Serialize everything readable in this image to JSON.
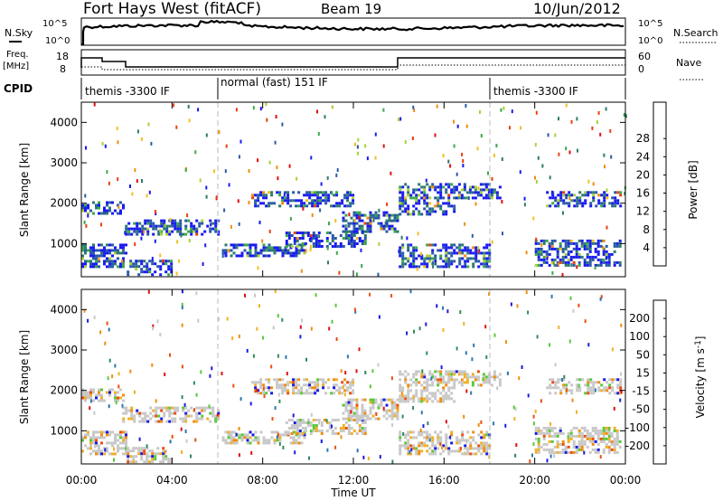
{
  "header": {
    "station": "Fort Hays West (fitACF)",
    "beam": "Beam 19",
    "date": "10/Jun/2012"
  },
  "noise_panel": {
    "left_label": "N.Sky",
    "right_label": "N.Search",
    "left_ticks": [
      "10^5",
      "10^0"
    ],
    "right_ticks": [
      "10^5",
      "10^0"
    ]
  },
  "freq_panel": {
    "left_label": "Freq.",
    "left_unit": "[MHz]",
    "left_ticks": [
      "18",
      "8"
    ],
    "right_label": "Nave",
    "right_ticks": [
      "60",
      "0"
    ]
  },
  "cpid": {
    "label": "CPID",
    "segments": [
      {
        "start_hour": 0,
        "text": "themis -3300 IF"
      },
      {
        "start_hour": 6,
        "text": "normal (fast) 151 IF"
      },
      {
        "start_hour": 18,
        "text": "themis -3300 IF"
      }
    ]
  },
  "chart_data": [
    {
      "type": "heatmap",
      "name": "power",
      "ylabel": "Slant Range [km]",
      "xlabel": "Time UT",
      "xlim": [
        0,
        24
      ],
      "ylim": [
        180,
        4500
      ],
      "x_ticks": [
        "00:00",
        "04:00",
        "08:00",
        "12:00",
        "16:00",
        "20:00",
        "00:00"
      ],
      "y_ticks": [
        1000,
        2000,
        3000,
        4000
      ],
      "colorbar": {
        "label": "Power [dB]",
        "ticks": [
          4,
          8,
          12,
          16,
          20,
          24,
          28
        ],
        "colors": [
          "#1a1af0",
          "#2a5aa8",
          "#2e7a6c",
          "#3aa84a",
          "#a8d23a",
          "#f0c020",
          "#f08c10",
          "#e84010",
          "#e01010"
        ]
      },
      "echo_bands": [
        {
          "t0": 0.0,
          "t1": 1.8,
          "r0": 1750,
          "r1": 2050
        },
        {
          "t0": 1.8,
          "t1": 6.0,
          "r0": 1250,
          "r1": 1600
        },
        {
          "t0": 0.0,
          "t1": 2.0,
          "r0": 450,
          "r1": 1000
        },
        {
          "t0": 2.0,
          "t1": 4.0,
          "r0": 250,
          "r1": 600
        },
        {
          "t0": 6.2,
          "t1": 9.8,
          "r0": 700,
          "r1": 1000
        },
        {
          "t0": 7.5,
          "t1": 12.0,
          "r0": 1900,
          "r1": 2300
        },
        {
          "t0": 9.0,
          "t1": 12.5,
          "r0": 900,
          "r1": 1300
        },
        {
          "t0": 11.5,
          "t1": 14.0,
          "r0": 1300,
          "r1": 1800
        },
        {
          "t0": 14.0,
          "t1": 16.5,
          "r0": 1700,
          "r1": 2500
        },
        {
          "t0": 14.0,
          "t1": 18.0,
          "r0": 400,
          "r1": 1000
        },
        {
          "t0": 16.5,
          "t1": 18.5,
          "r0": 2100,
          "r1": 2500
        },
        {
          "t0": 20.5,
          "t1": 23.8,
          "r0": 1900,
          "r1": 2300
        },
        {
          "t0": 20.0,
          "t1": 23.8,
          "r0": 450,
          "r1": 1100
        }
      ]
    },
    {
      "type": "heatmap",
      "name": "velocity",
      "ylabel": "Slant Range [km]",
      "xlabel": "Time UT",
      "xlim": [
        0,
        24
      ],
      "ylim": [
        180,
        4500
      ],
      "x_ticks": [
        "00:00",
        "04:00",
        "08:00",
        "12:00",
        "16:00",
        "20:00",
        "00:00"
      ],
      "y_ticks": [
        1000,
        2000,
        3000,
        4000
      ],
      "colorbar": {
        "label": "Velocity [m s^-1]",
        "ticks": [
          200,
          100,
          50,
          15,
          -15,
          -50,
          -100,
          -200
        ],
        "colors": [
          "#1a1ae0",
          "#2a78b4",
          "#2e8a5a",
          "#5ac83a",
          "#c8c8c8",
          "#f0b02a",
          "#f08c10",
          "#e85010",
          "#e01010"
        ]
      },
      "echo_bands": [
        {
          "t0": 0.0,
          "t1": 1.8,
          "r0": 1750,
          "r1": 2050
        },
        {
          "t0": 1.8,
          "t1": 6.0,
          "r0": 1250,
          "r1": 1600
        },
        {
          "t0": 0.0,
          "t1": 2.0,
          "r0": 450,
          "r1": 1000
        },
        {
          "t0": 2.0,
          "t1": 4.0,
          "r0": 250,
          "r1": 600
        },
        {
          "t0": 6.2,
          "t1": 9.8,
          "r0": 700,
          "r1": 1000
        },
        {
          "t0": 7.5,
          "t1": 12.0,
          "r0": 1900,
          "r1": 2300
        },
        {
          "t0": 9.0,
          "t1": 12.5,
          "r0": 900,
          "r1": 1300
        },
        {
          "t0": 11.5,
          "t1": 14.0,
          "r0": 1300,
          "r1": 1800
        },
        {
          "t0": 14.0,
          "t1": 16.5,
          "r0": 1700,
          "r1": 2500
        },
        {
          "t0": 14.0,
          "t1": 18.0,
          "r0": 400,
          "r1": 1000
        },
        {
          "t0": 16.5,
          "t1": 18.5,
          "r0": 2100,
          "r1": 2500
        },
        {
          "t0": 20.5,
          "t1": 23.8,
          "r0": 1900,
          "r1": 2300
        },
        {
          "t0": 20.0,
          "t1": 23.8,
          "r0": 450,
          "r1": 1100
        }
      ]
    }
  ]
}
